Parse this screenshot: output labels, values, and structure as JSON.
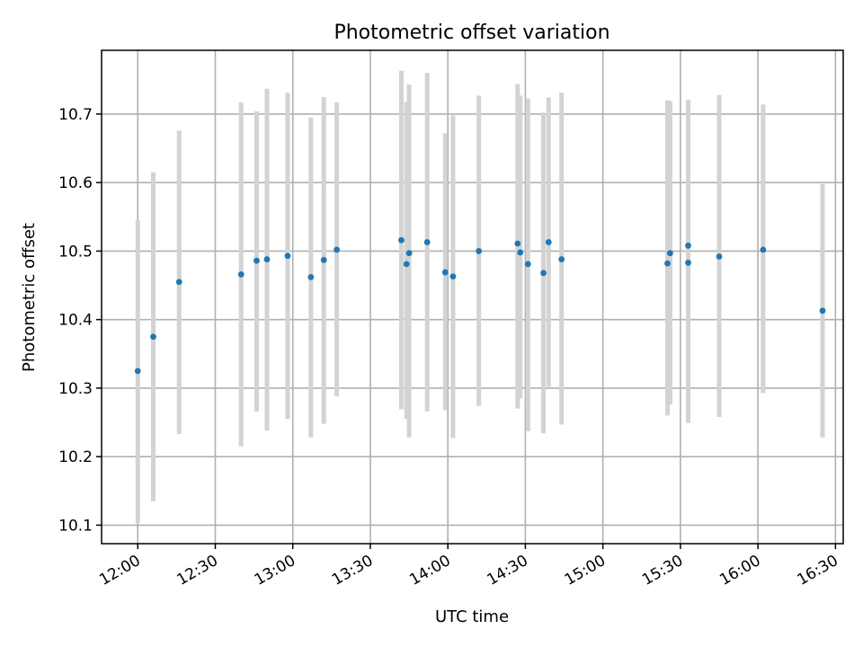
{
  "chart_data": {
    "type": "scatter",
    "title": "Photometric offset variation",
    "xlabel": "UTC time",
    "ylabel": "Photometric offset",
    "x_unit": "UTC time (HH:MM)",
    "xlim": [
      "11:46",
      "16:33"
    ],
    "ylim": [
      10.073,
      10.793
    ],
    "x_ticks": [
      "12:00",
      "12:30",
      "13:00",
      "13:30",
      "14:00",
      "14:30",
      "15:00",
      "15:30",
      "16:00",
      "16:30"
    ],
    "y_ticks": [
      10.1,
      10.2,
      10.3,
      10.4,
      10.5,
      10.6,
      10.7
    ],
    "grid": true,
    "colors": {
      "points": "#1f77b4",
      "errorbars": "#d3d3d3",
      "grid": "#b0b0b0"
    },
    "series": [
      {
        "points": [
          {
            "x": "12:00",
            "y": 10.325,
            "y_low": 10.103,
            "y_high": 10.545
          },
          {
            "x": "12:06",
            "y": 10.375,
            "y_low": 10.135,
            "y_high": 10.615
          },
          {
            "x": "12:16",
            "y": 10.455,
            "y_low": 10.233,
            "y_high": 10.676
          },
          {
            "x": "12:40",
            "y": 10.466,
            "y_low": 10.215,
            "y_high": 10.717
          },
          {
            "x": "12:46",
            "y": 10.486,
            "y_low": 10.266,
            "y_high": 10.704
          },
          {
            "x": "12:50",
            "y": 10.488,
            "y_low": 10.238,
            "y_high": 10.737
          },
          {
            "x": "12:58",
            "y": 10.493,
            "y_low": 10.255,
            "y_high": 10.731
          },
          {
            "x": "13:07",
            "y": 10.462,
            "y_low": 10.228,
            "y_high": 10.695
          },
          {
            "x": "13:12",
            "y": 10.487,
            "y_low": 10.248,
            "y_high": 10.725
          },
          {
            "x": "13:17",
            "y": 10.502,
            "y_low": 10.288,
            "y_high": 10.717
          },
          {
            "x": "13:42",
            "y": 10.516,
            "y_low": 10.269,
            "y_high": 10.763
          },
          {
            "x": "13:44",
            "y": 10.481,
            "y_low": 10.255,
            "y_high": 10.718
          },
          {
            "x": "13:45",
            "y": 10.497,
            "y_low": 10.228,
            "y_high": 10.743
          },
          {
            "x": "13:52",
            "y": 10.513,
            "y_low": 10.266,
            "y_high": 10.76
          },
          {
            "x": "13:59",
            "y": 10.469,
            "y_low": 10.268,
            "y_high": 10.672
          },
          {
            "x": "14:02",
            "y": 10.463,
            "y_low": 10.227,
            "y_high": 10.698
          },
          {
            "x": "14:12",
            "y": 10.5,
            "y_low": 10.274,
            "y_high": 10.727
          },
          {
            "x": "14:27",
            "y": 10.511,
            "y_low": 10.27,
            "y_high": 10.744
          },
          {
            "x": "14:28",
            "y": 10.498,
            "y_low": 10.285,
            "y_high": 10.727
          },
          {
            "x": "14:31",
            "y": 10.481,
            "y_low": 10.237,
            "y_high": 10.723
          },
          {
            "x": "14:37",
            "y": 10.468,
            "y_low": 10.234,
            "y_high": 10.702
          },
          {
            "x": "14:39",
            "y": 10.513,
            "y_low": 10.302,
            "y_high": 10.724
          },
          {
            "x": "14:44",
            "y": 10.488,
            "y_low": 10.247,
            "y_high": 10.731
          },
          {
            "x": "15:25",
            "y": 10.482,
            "y_low": 10.26,
            "y_high": 10.72
          },
          {
            "x": "15:26",
            "y": 10.497,
            "y_low": 10.276,
            "y_high": 10.719
          },
          {
            "x": "15:33",
            "y": 10.508,
            "y_low": 10.292,
            "y_high": 10.721
          },
          {
            "x": "15:33",
            "y": 10.483,
            "y_low": 10.249,
            "y_high": 10.718
          },
          {
            "x": "15:45",
            "y": 10.492,
            "y_low": 10.258,
            "y_high": 10.728
          },
          {
            "x": "16:02",
            "y": 10.502,
            "y_low": 10.293,
            "y_high": 10.714
          },
          {
            "x": "16:25",
            "y": 10.413,
            "y_low": 10.228,
            "y_high": 10.598
          }
        ]
      }
    ]
  }
}
